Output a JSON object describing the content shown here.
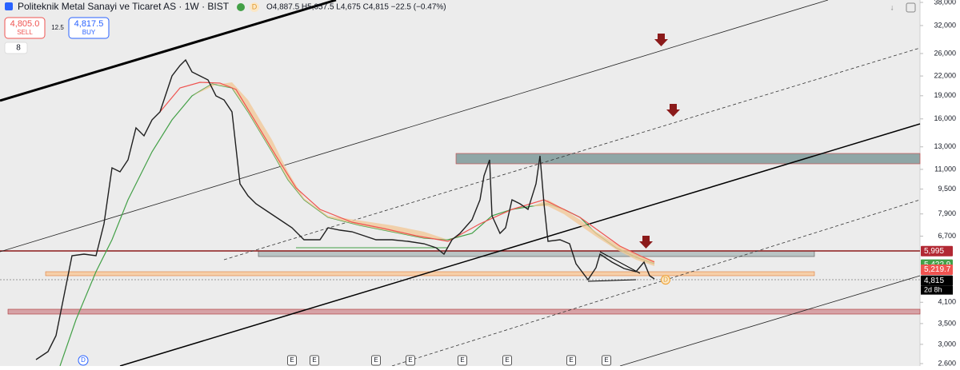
{
  "header": {
    "title": "Politeknik Metal Sanayi ve Ticaret AS · 1W · BIST",
    "status": "D",
    "ohlc": "O4,887.5 H5,057.5 L4,675 C4,815 −22.5 (−0.47%)"
  },
  "trade": {
    "sell_price": "4,805.0",
    "sell_label": "SELL",
    "spread": "12.5",
    "buy_price": "4,817.5",
    "buy_label": "BUY"
  },
  "indicators_count": "8",
  "price_axis": {
    "log": true,
    "ylim": [
      2600,
      38000
    ],
    "ticks": [
      {
        "value": 38000,
        "label": "38,000"
      },
      {
        "value": 32000,
        "label": "32,000"
      },
      {
        "value": 26000,
        "label": "26,000"
      },
      {
        "value": 22000,
        "label": "22,000"
      },
      {
        "value": 19000,
        "label": "19,000"
      },
      {
        "value": 16000,
        "label": "16,000"
      },
      {
        "value": 13000,
        "label": "13,000"
      },
      {
        "value": 11000,
        "label": "11,000"
      },
      {
        "value": 9500,
        "label": "9,500"
      },
      {
        "value": 7900,
        "label": "7,900"
      },
      {
        "value": 6700,
        "label": "6,700"
      },
      {
        "value": 4100,
        "label": "4,100"
      },
      {
        "value": 3500,
        "label": "3,500"
      },
      {
        "value": 3000,
        "label": "3,000"
      },
      {
        "value": 2600,
        "label": "2,600"
      }
    ]
  },
  "price_tags": [
    {
      "value": 5995,
      "label": "5,995",
      "color": "#b22833"
    },
    {
      "value": 5422.9,
      "label": "5,422.9",
      "color": "#43a047"
    },
    {
      "value": 5219.7,
      "label": "5,219.7",
      "color": "#ef5350"
    },
    {
      "value": 4815,
      "label": "4,815",
      "color": "#000000"
    }
  ],
  "countdown": "2d 8h",
  "events": [
    "D",
    "E",
    "E",
    "E",
    "E",
    "E",
    "E",
    "E",
    "E"
  ],
  "dividend_marker": "D"
}
